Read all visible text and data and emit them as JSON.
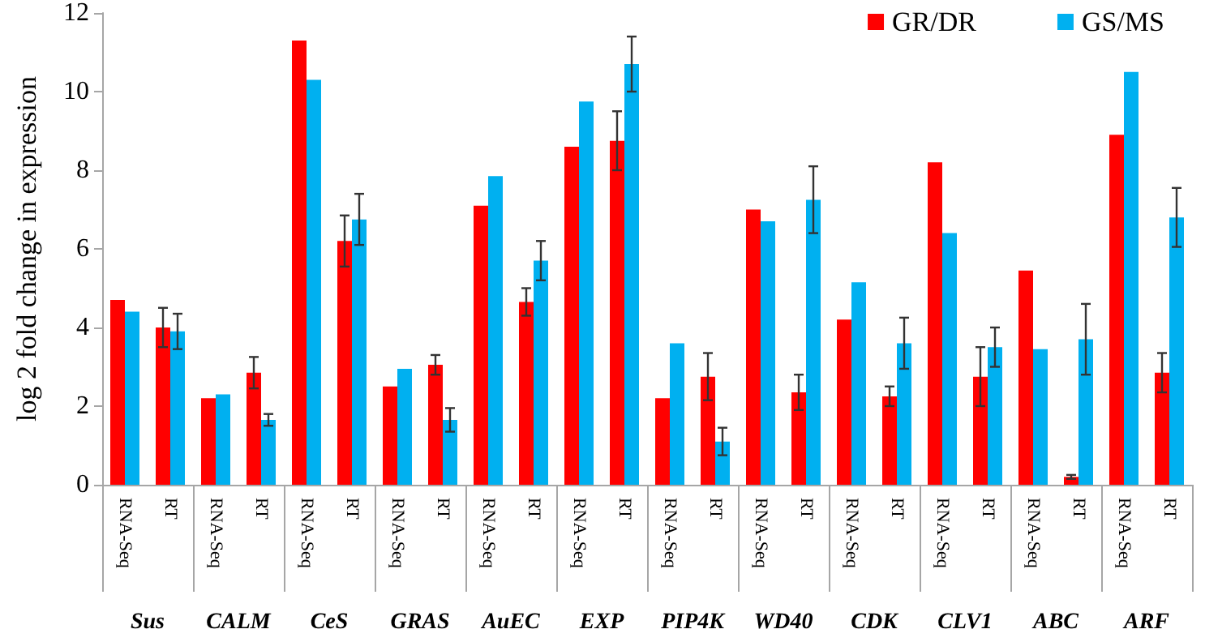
{
  "chart_data": {
    "type": "bar",
    "ylabel": "log 2 fold change in expression",
    "categories": [
      "RNA-Seq",
      "RT",
      "RNA-Seq",
      "RT",
      "RNA-Seq",
      "RT",
      "RNA-Seq",
      "RT",
      "RNA-Seq",
      "RT",
      "RNA-Seq",
      "RT",
      "RNA-Seq",
      "RT",
      "RNA-Seq",
      "RT",
      "RNA-Seq",
      "RT",
      "RNA-Seq",
      "RT",
      "RNA-Seq",
      "RT",
      "RNA-Seq",
      "RT"
    ],
    "annotations": [
      "Sus",
      "CALM",
      "CeS",
      "GRAS",
      "AuEC",
      "EXP",
      "PIP4K",
      "WD40",
      "CDK",
      "CLV1",
      "ABC",
      "ARF"
    ],
    "series": [
      {
        "name": "GR/DR",
        "color": "#ff0000",
        "values": [
          4.7,
          4.0,
          2.2,
          2.85,
          11.3,
          6.2,
          2.5,
          3.05,
          7.1,
          4.65,
          8.6,
          8.75,
          2.2,
          2.75,
          7.0,
          2.35,
          4.2,
          2.25,
          8.2,
          2.75,
          5.45,
          0.2,
          8.9,
          2.85
        ],
        "errors": [
          null,
          0.5,
          null,
          0.4,
          null,
          0.65,
          null,
          0.25,
          null,
          0.35,
          null,
          0.75,
          null,
          0.6,
          null,
          0.45,
          null,
          0.25,
          null,
          0.75,
          null,
          0.05,
          null,
          0.5
        ]
      },
      {
        "name": "GS/MS",
        "color": "#00b0f0",
        "values": [
          4.4,
          3.9,
          2.3,
          1.65,
          10.3,
          6.75,
          2.95,
          1.65,
          7.85,
          5.7,
          9.75,
          10.7,
          3.6,
          1.1,
          6.7,
          7.25,
          5.15,
          3.6,
          6.4,
          3.5,
          3.45,
          3.7,
          10.5,
          6.8
        ],
        "errors": [
          null,
          0.45,
          null,
          0.15,
          null,
          0.65,
          null,
          0.3,
          null,
          0.5,
          null,
          0.7,
          null,
          0.35,
          null,
          0.85,
          null,
          0.65,
          null,
          0.5,
          null,
          0.9,
          null,
          0.75
        ]
      }
    ],
    "ylim": [
      0,
      12
    ],
    "yticks": [
      0,
      2,
      4,
      6,
      8,
      10,
      12
    ],
    "grid": false,
    "legend": "top right"
  }
}
